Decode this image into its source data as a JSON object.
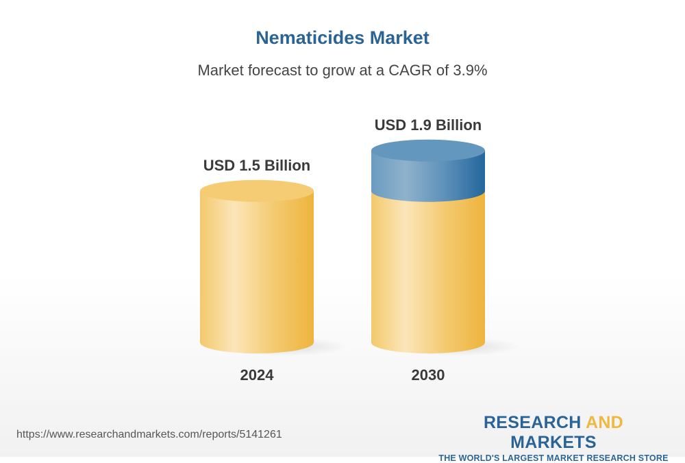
{
  "title": "Nematicides Market",
  "subtitle": "Market forecast to grow at a CAGR of 3.9%",
  "chart_data": {
    "type": "bar",
    "style": "3d-cylinder",
    "categories": [
      "2024",
      "2030"
    ],
    "values": [
      1.5,
      1.9
    ],
    "data_labels": [
      "USD 1.5 Billion",
      "USD 1.9 Billion"
    ],
    "unit": "USD Billion",
    "colors": {
      "base": "#f0b840",
      "growth": "#2a6496"
    }
  },
  "footer": {
    "url": "https://www.researchandmarkets.com/reports/5141261",
    "logo_part1": "RESEARCH ",
    "logo_part2": "AND",
    "logo_part3": " MARKETS",
    "tagline": "THE WORLD'S LARGEST MARKET RESEARCH STORE"
  }
}
